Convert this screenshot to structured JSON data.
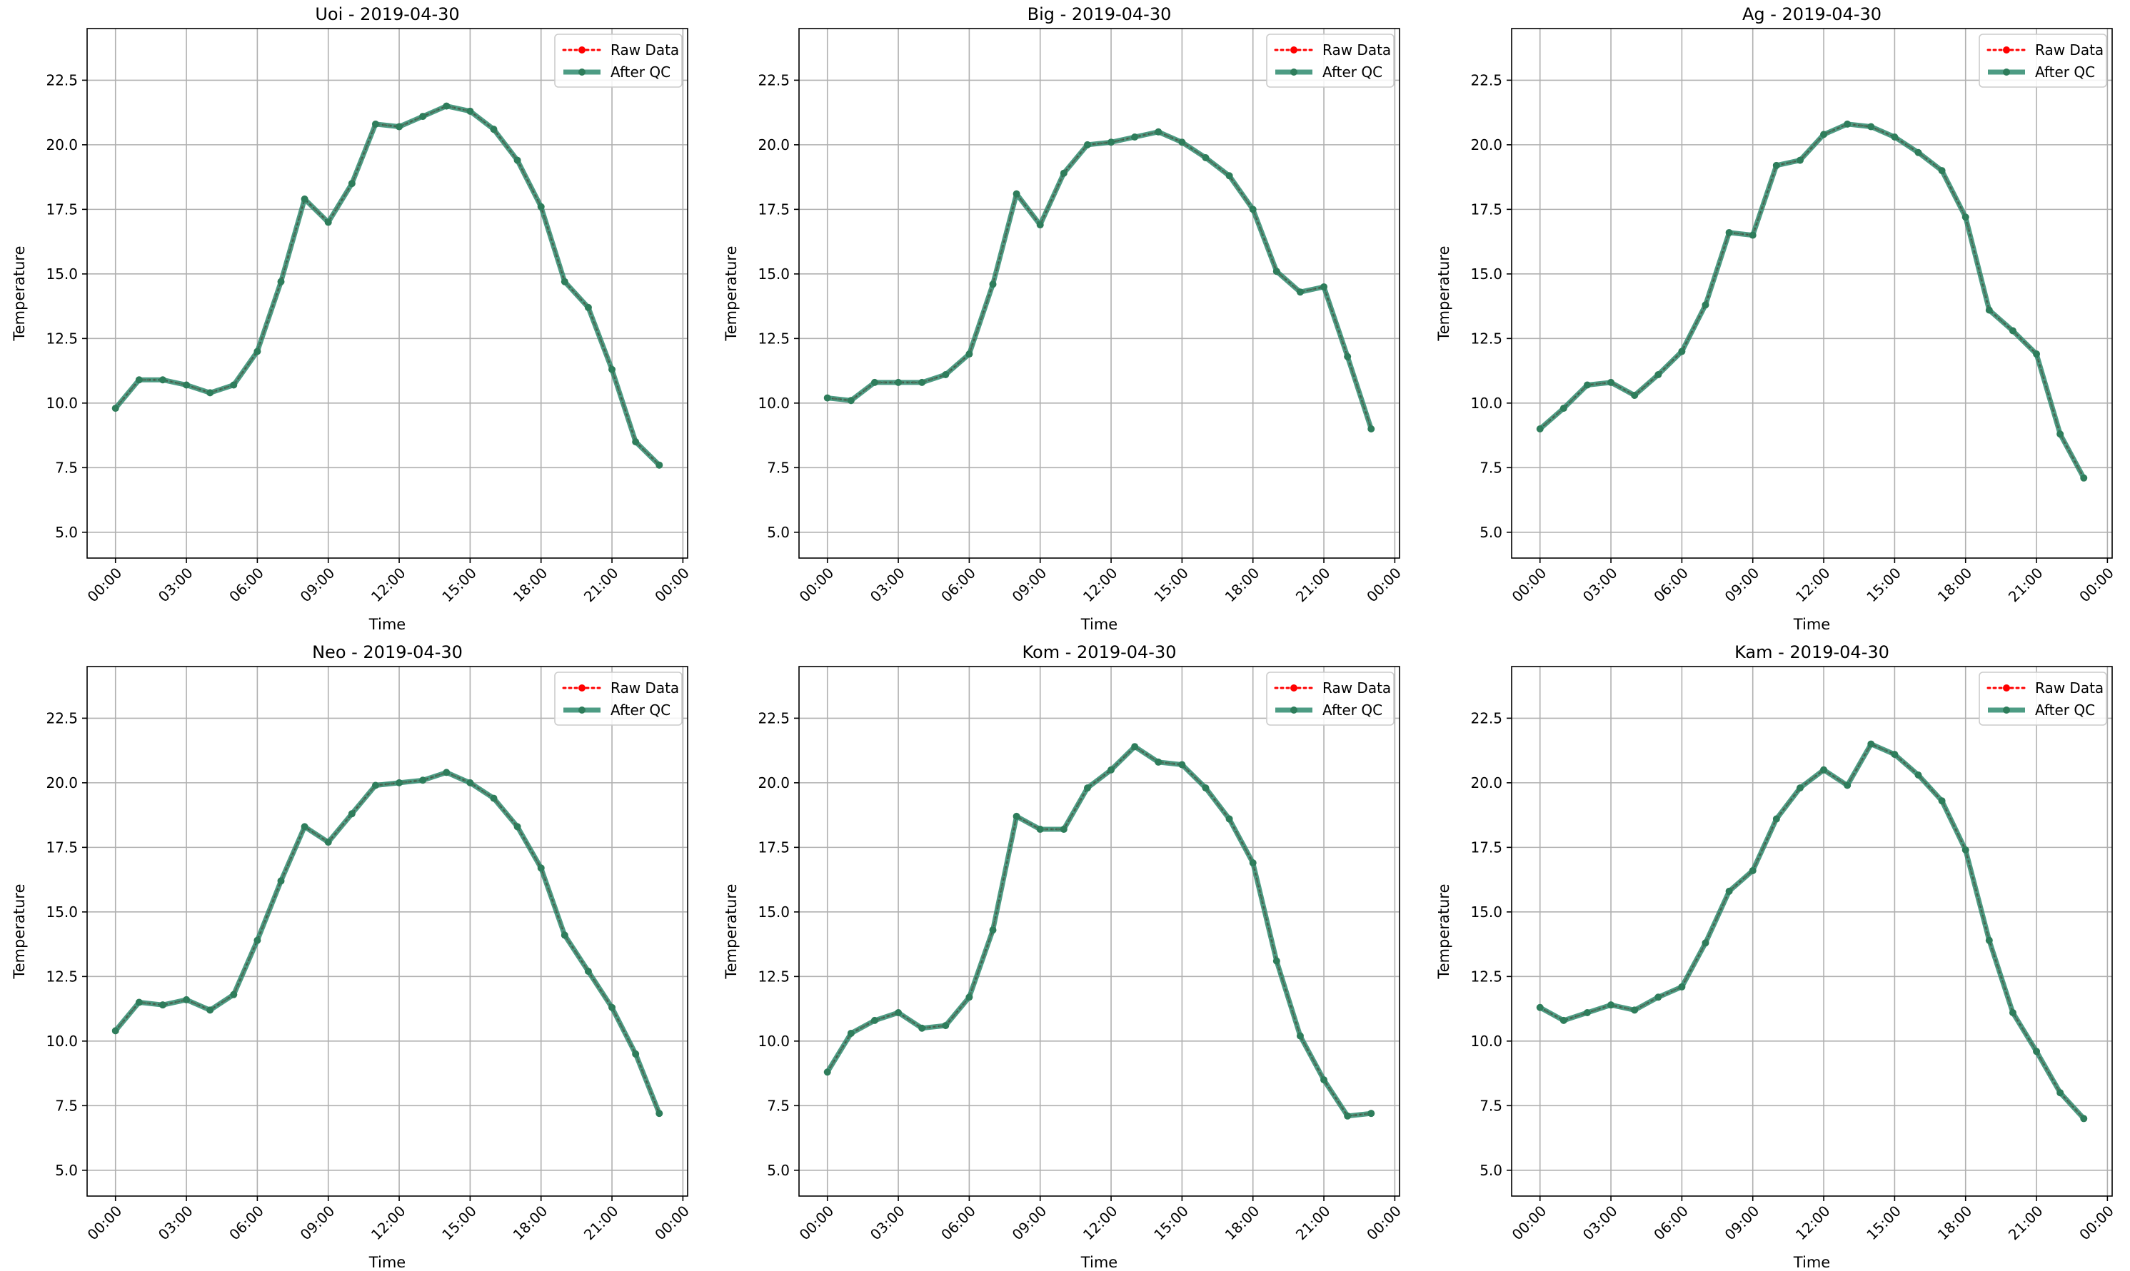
{
  "colors": {
    "raw": "#ff0000",
    "qc": "#2e8b6f",
    "qc_marker": "#2e7d5b",
    "grid": "#b0b0b0",
    "axis": "#000000",
    "legend_border": "#cccccc"
  },
  "chart_data": [
    {
      "type": "line",
      "title": "Uoi - 2019-04-30",
      "xlabel": "Time",
      "ylabel": "Temperature",
      "xlim": [
        -1.2,
        24.2
      ],
      "ylim": [
        4.0,
        24.5
      ],
      "x_ticks": [
        0,
        3,
        6,
        9,
        12,
        15,
        18,
        21,
        24
      ],
      "x_tick_labels": [
        "00:00",
        "03:00",
        "06:00",
        "09:00",
        "12:00",
        "15:00",
        "18:00",
        "21:00",
        "00:00"
      ],
      "y_ticks": [
        5.0,
        7.5,
        10.0,
        12.5,
        15.0,
        17.5,
        20.0,
        22.5
      ],
      "y_tick_labels": [
        "5.0",
        "7.5",
        "10.0",
        "12.5",
        "15.0",
        "17.5",
        "20.0",
        "22.5"
      ],
      "grid": true,
      "legend_position": "top-right",
      "x": [
        0,
        1,
        2,
        3,
        4,
        5,
        6,
        7,
        8,
        9,
        10,
        11,
        12,
        13,
        14,
        15,
        16,
        17,
        18,
        19,
        20,
        21,
        22,
        23
      ],
      "series": [
        {
          "name": "Raw Data",
          "style": "raw",
          "values": [
            9.8,
            10.9,
            10.9,
            10.7,
            10.4,
            10.7,
            12.0,
            14.7,
            17.9,
            17.0,
            18.5,
            20.8,
            20.7,
            21.1,
            21.5,
            21.3,
            20.6,
            19.4,
            17.6,
            14.7,
            13.7,
            11.3,
            8.5,
            7.6
          ]
        },
        {
          "name": "After QC",
          "style": "qc",
          "values": [
            9.8,
            10.9,
            10.9,
            10.7,
            10.4,
            10.7,
            12.0,
            14.7,
            17.9,
            17.0,
            18.5,
            20.8,
            20.7,
            21.1,
            21.5,
            21.3,
            20.6,
            19.4,
            17.6,
            14.7,
            13.7,
            11.3,
            8.5,
            7.6
          ]
        }
      ]
    },
    {
      "type": "line",
      "title": "Big - 2019-04-30",
      "xlabel": "Time",
      "ylabel": "Temperature",
      "xlim": [
        -1.2,
        24.2
      ],
      "ylim": [
        4.0,
        24.5
      ],
      "x_ticks": [
        0,
        3,
        6,
        9,
        12,
        15,
        18,
        21,
        24
      ],
      "x_tick_labels": [
        "00:00",
        "03:00",
        "06:00",
        "09:00",
        "12:00",
        "15:00",
        "18:00",
        "21:00",
        "00:00"
      ],
      "y_ticks": [
        5.0,
        7.5,
        10.0,
        12.5,
        15.0,
        17.5,
        20.0,
        22.5
      ],
      "y_tick_labels": [
        "5.0",
        "7.5",
        "10.0",
        "12.5",
        "15.0",
        "17.5",
        "20.0",
        "22.5"
      ],
      "grid": true,
      "legend_position": "top-right",
      "x": [
        0,
        1,
        2,
        3,
        4,
        5,
        6,
        7,
        8,
        9,
        10,
        11,
        12,
        13,
        14,
        15,
        16,
        17,
        18,
        19,
        20,
        21,
        22,
        23
      ],
      "series": [
        {
          "name": "Raw Data",
          "style": "raw",
          "values": [
            10.2,
            10.1,
            10.8,
            10.8,
            10.8,
            11.1,
            11.9,
            14.6,
            18.1,
            16.9,
            18.9,
            20.0,
            20.1,
            20.3,
            20.5,
            20.1,
            19.5,
            18.8,
            17.5,
            15.1,
            14.3,
            14.5,
            11.8,
            9.0
          ]
        },
        {
          "name": "After QC",
          "style": "qc",
          "values": [
            10.2,
            10.1,
            10.8,
            10.8,
            10.8,
            11.1,
            11.9,
            14.6,
            18.1,
            16.9,
            18.9,
            20.0,
            20.1,
            20.3,
            20.5,
            20.1,
            19.5,
            18.8,
            17.5,
            15.1,
            14.3,
            14.5,
            11.8,
            9.0
          ]
        }
      ]
    },
    {
      "type": "line",
      "title": "Ag - 2019-04-30",
      "xlabel": "Time",
      "ylabel": "Temperature",
      "xlim": [
        -1.2,
        24.2
      ],
      "ylim": [
        4.0,
        24.5
      ],
      "x_ticks": [
        0,
        3,
        6,
        9,
        12,
        15,
        18,
        21,
        24
      ],
      "x_tick_labels": [
        "00:00",
        "03:00",
        "06:00",
        "09:00",
        "12:00",
        "15:00",
        "18:00",
        "21:00",
        "00:00"
      ],
      "y_ticks": [
        5.0,
        7.5,
        10.0,
        12.5,
        15.0,
        17.5,
        20.0,
        22.5
      ],
      "y_tick_labels": [
        "5.0",
        "7.5",
        "10.0",
        "12.5",
        "15.0",
        "17.5",
        "20.0",
        "22.5"
      ],
      "grid": true,
      "legend_position": "top-right",
      "x": [
        0,
        1,
        2,
        3,
        4,
        5,
        6,
        7,
        8,
        9,
        10,
        11,
        12,
        13,
        14,
        15,
        16,
        17,
        18,
        19,
        20,
        21,
        22,
        23
      ],
      "series": [
        {
          "name": "Raw Data",
          "style": "raw",
          "values": [
            9.0,
            9.8,
            10.7,
            10.8,
            10.3,
            11.1,
            12.0,
            13.8,
            16.6,
            16.5,
            19.2,
            19.4,
            20.4,
            20.8,
            20.7,
            20.3,
            19.7,
            19.0,
            17.2,
            13.6,
            12.8,
            11.9,
            8.8,
            7.1
          ]
        },
        {
          "name": "After QC",
          "style": "qc",
          "values": [
            9.0,
            9.8,
            10.7,
            10.8,
            10.3,
            11.1,
            12.0,
            13.8,
            16.6,
            16.5,
            19.2,
            19.4,
            20.4,
            20.8,
            20.7,
            20.3,
            19.7,
            19.0,
            17.2,
            13.6,
            12.8,
            11.9,
            8.8,
            7.1
          ]
        }
      ]
    },
    {
      "type": "line",
      "title": "Neo - 2019-04-30",
      "xlabel": "Time",
      "ylabel": "Temperature",
      "xlim": [
        -1.2,
        24.2
      ],
      "ylim": [
        4.0,
        24.5
      ],
      "x_ticks": [
        0,
        3,
        6,
        9,
        12,
        15,
        18,
        21,
        24
      ],
      "x_tick_labels": [
        "00:00",
        "03:00",
        "06:00",
        "09:00",
        "12:00",
        "15:00",
        "18:00",
        "21:00",
        "00:00"
      ],
      "y_ticks": [
        5.0,
        7.5,
        10.0,
        12.5,
        15.0,
        17.5,
        20.0,
        22.5
      ],
      "y_tick_labels": [
        "5.0",
        "7.5",
        "10.0",
        "12.5",
        "15.0",
        "17.5",
        "20.0",
        "22.5"
      ],
      "grid": true,
      "legend_position": "top-right",
      "x": [
        0,
        1,
        2,
        3,
        4,
        5,
        6,
        7,
        8,
        9,
        10,
        11,
        12,
        13,
        14,
        15,
        16,
        17,
        18,
        19,
        20,
        21,
        22,
        23
      ],
      "series": [
        {
          "name": "Raw Data",
          "style": "raw",
          "values": [
            10.4,
            11.5,
            11.4,
            11.6,
            11.2,
            11.8,
            13.9,
            16.2,
            18.3,
            17.7,
            18.8,
            19.9,
            20.0,
            20.1,
            20.4,
            20.0,
            19.4,
            18.3,
            16.7,
            14.1,
            12.7,
            11.3,
            9.5,
            7.2
          ]
        },
        {
          "name": "After QC",
          "style": "qc",
          "values": [
            10.4,
            11.5,
            11.4,
            11.6,
            11.2,
            11.8,
            13.9,
            16.2,
            18.3,
            17.7,
            18.8,
            19.9,
            20.0,
            20.1,
            20.4,
            20.0,
            19.4,
            18.3,
            16.7,
            14.1,
            12.7,
            11.3,
            9.5,
            7.2
          ]
        }
      ]
    },
    {
      "type": "line",
      "title": "Kom - 2019-04-30",
      "xlabel": "Time",
      "ylabel": "Temperature",
      "xlim": [
        -1.2,
        24.2
      ],
      "ylim": [
        4.0,
        24.5
      ],
      "x_ticks": [
        0,
        3,
        6,
        9,
        12,
        15,
        18,
        21,
        24
      ],
      "x_tick_labels": [
        "00:00",
        "03:00",
        "06:00",
        "09:00",
        "12:00",
        "15:00",
        "18:00",
        "21:00",
        "00:00"
      ],
      "y_ticks": [
        5.0,
        7.5,
        10.0,
        12.5,
        15.0,
        17.5,
        20.0,
        22.5
      ],
      "y_tick_labels": [
        "5.0",
        "7.5",
        "10.0",
        "12.5",
        "15.0",
        "17.5",
        "20.0",
        "22.5"
      ],
      "grid": true,
      "legend_position": "top-right",
      "x": [
        0,
        1,
        2,
        3,
        4,
        5,
        6,
        7,
        8,
        9,
        10,
        11,
        12,
        13,
        14,
        15,
        16,
        17,
        18,
        19,
        20,
        21,
        22,
        23
      ],
      "series": [
        {
          "name": "Raw Data",
          "style": "raw",
          "values": [
            8.8,
            10.3,
            10.8,
            11.1,
            10.5,
            10.6,
            11.7,
            14.3,
            18.7,
            18.2,
            18.2,
            19.8,
            20.5,
            21.4,
            20.8,
            20.7,
            19.8,
            18.6,
            16.9,
            13.1,
            10.2,
            8.5,
            7.1,
            7.2
          ]
        },
        {
          "name": "After QC",
          "style": "qc",
          "values": [
            8.8,
            10.3,
            10.8,
            11.1,
            10.5,
            10.6,
            11.7,
            14.3,
            18.7,
            18.2,
            18.2,
            19.8,
            20.5,
            21.4,
            20.8,
            20.7,
            19.8,
            18.6,
            16.9,
            13.1,
            10.2,
            8.5,
            7.1,
            7.2
          ]
        }
      ]
    },
    {
      "type": "line",
      "title": "Kam - 2019-04-30",
      "xlabel": "Time",
      "ylabel": "Temperature",
      "xlim": [
        -1.2,
        24.2
      ],
      "ylim": [
        4.0,
        24.5
      ],
      "x_ticks": [
        0,
        3,
        6,
        9,
        12,
        15,
        18,
        21,
        24
      ],
      "x_tick_labels": [
        "00:00",
        "03:00",
        "06:00",
        "09:00",
        "12:00",
        "15:00",
        "18:00",
        "21:00",
        "00:00"
      ],
      "y_ticks": [
        5.0,
        7.5,
        10.0,
        12.5,
        15.0,
        17.5,
        20.0,
        22.5
      ],
      "y_tick_labels": [
        "5.0",
        "7.5",
        "10.0",
        "12.5",
        "15.0",
        "17.5",
        "20.0",
        "22.5"
      ],
      "grid": true,
      "legend_position": "top-right",
      "x": [
        0,
        1,
        2,
        3,
        4,
        5,
        6,
        7,
        8,
        9,
        10,
        11,
        12,
        13,
        14,
        15,
        16,
        17,
        18,
        19,
        20,
        21,
        22,
        23
      ],
      "series": [
        {
          "name": "Raw Data",
          "style": "raw",
          "values": [
            11.3,
            10.8,
            11.1,
            11.4,
            11.2,
            11.7,
            12.1,
            13.8,
            15.8,
            16.6,
            18.6,
            19.8,
            20.5,
            19.9,
            21.5,
            21.1,
            20.3,
            19.3,
            17.4,
            13.9,
            11.1,
            9.6,
            8.0,
            7.0
          ]
        },
        {
          "name": "After QC",
          "style": "qc",
          "values": [
            11.3,
            10.8,
            11.1,
            11.4,
            11.2,
            11.7,
            12.1,
            13.8,
            15.8,
            16.6,
            18.6,
            19.8,
            20.5,
            19.9,
            21.5,
            21.1,
            20.3,
            19.3,
            17.4,
            13.9,
            11.1,
            9.6,
            8.0,
            7.0
          ]
        }
      ]
    }
  ]
}
